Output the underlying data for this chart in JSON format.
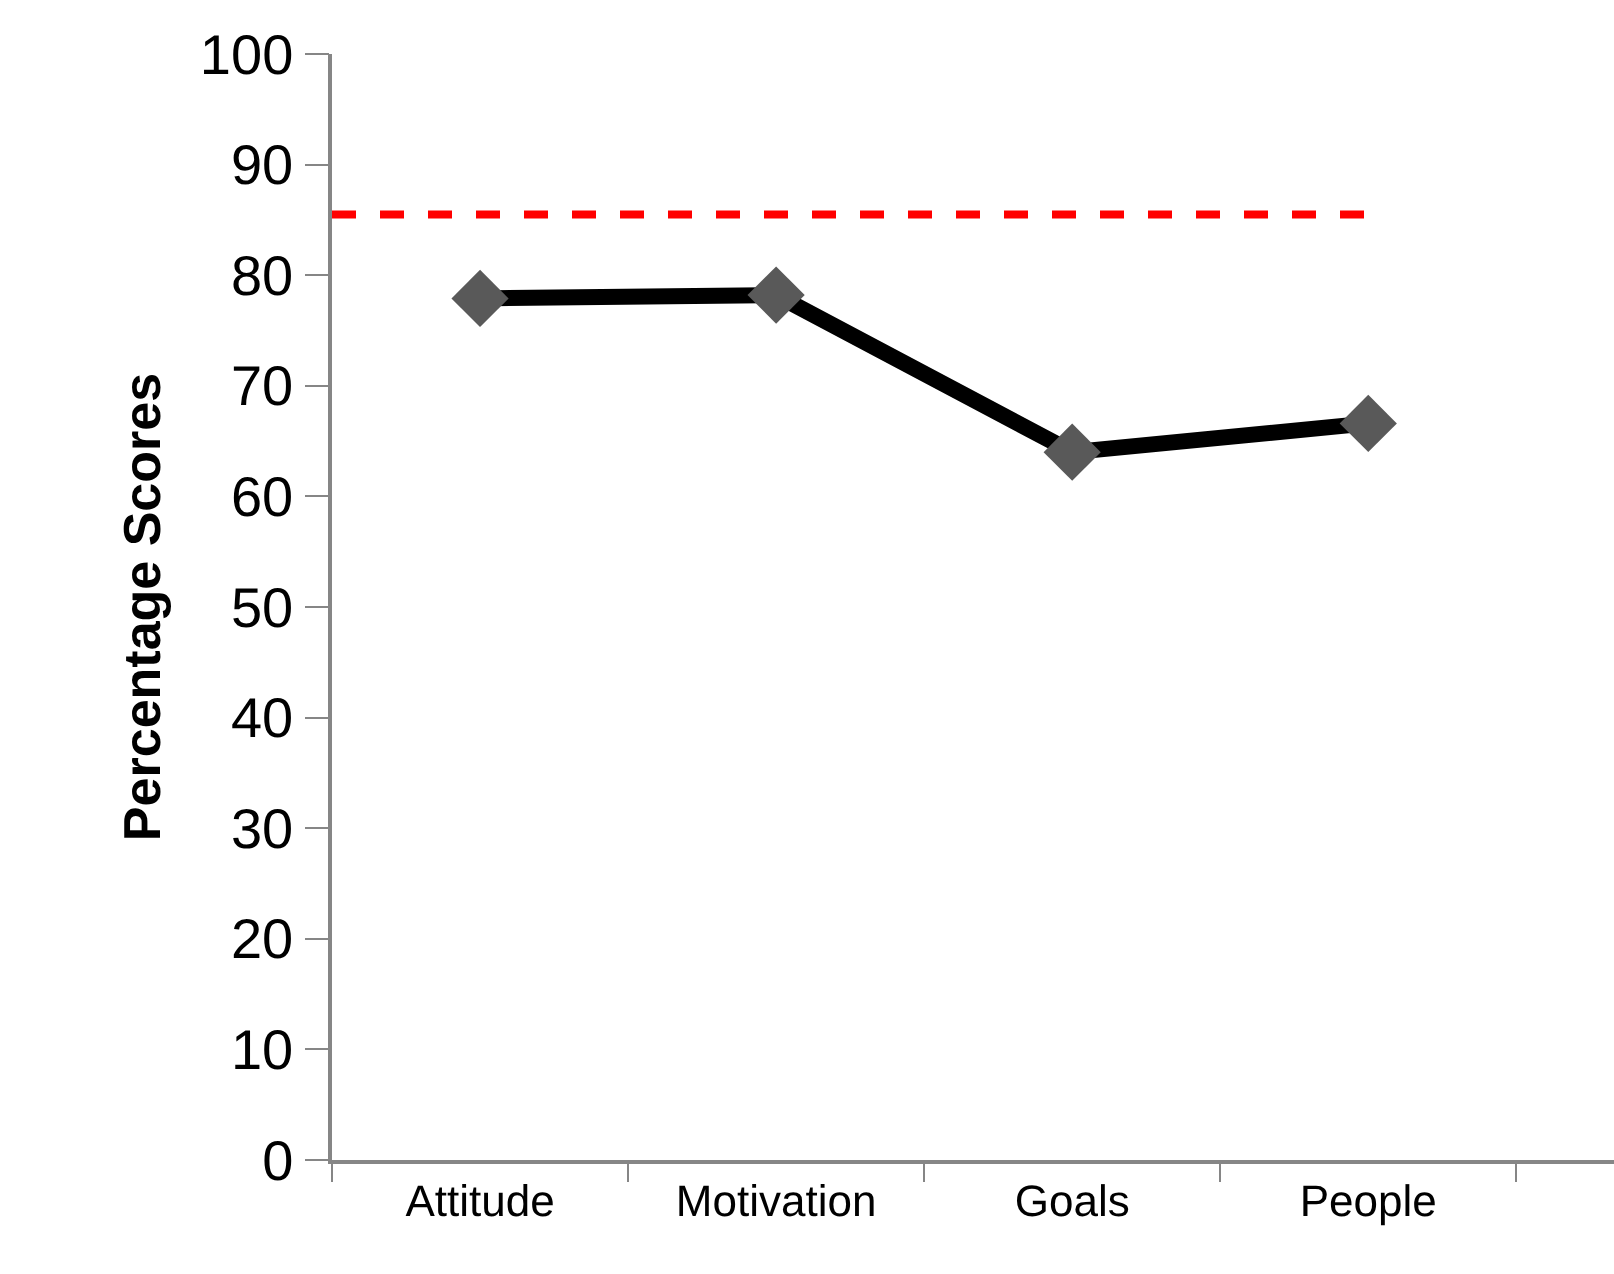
{
  "chart_data": {
    "type": "line",
    "ylabel": "Percentage Scores",
    "categories": [
      "Attitude",
      "Motivation",
      "Goals",
      "People"
    ],
    "series": [
      {
        "color": "#000000",
        "values": [
          77.9,
          78.2,
          64.0,
          66.6
        ]
      }
    ],
    "ylim": [
      0,
      100
    ],
    "yticks": [
      0,
      10,
      20,
      30,
      40,
      50,
      60,
      70,
      80,
      90,
      100
    ],
    "grid": false,
    "marker": "diamond",
    "line_style": "solid",
    "ref_lines": [
      {
        "axis": "y",
        "value": 85.5,
        "color": "#ff0000",
        "line_style": "dashed"
      }
    ]
  }
}
